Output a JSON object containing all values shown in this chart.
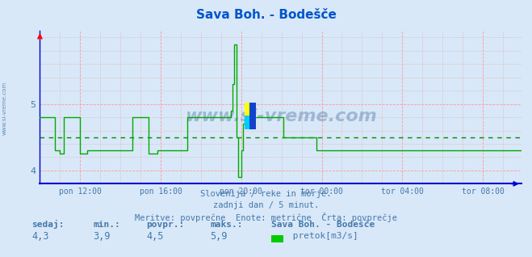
{
  "title": "Sava Boh. - Bodešče",
  "background_color": "#d8e8f8",
  "plot_bg_color": "#d8e8f8",
  "line_color": "#00aa00",
  "avg_line_color": "#008800",
  "axis_color": "#0000cc",
  "text_color": "#4477aa",
  "title_color": "#0055cc",
  "ylim": [
    3.8,
    6.1
  ],
  "yticks": [
    4.0,
    5.0
  ],
  "grid_color_major": "#ff9999",
  "grid_color_minor": "#ddbbbb",
  "avg_value": 4.5,
  "sedaj": 4.3,
  "min_val": 3.9,
  "povpr": 4.5,
  "maks": 5.9,
  "subtitle1": "Slovenija / reke in morje.",
  "subtitle2": "zadnji dan / 5 minut.",
  "subtitle3": "Meritve: povprečne  Enote: metrične  Črta: povprečje",
  "legend_title": "Sava Boh. - Bodešče",
  "legend_label": " pretok[m3/s]",
  "legend_color": "#00cc00",
  "watermark": "www.si-vreme.com",
  "xlabel_ticks": [
    "pon 12:00",
    "pon 16:00",
    "pon 20:00",
    "tor 00:00",
    "tor 04:00",
    "tor 08:00"
  ],
  "n_points": 288,
  "watermark_color": "#1a4a8a",
  "sidebar_text": "www.si-vreme.com",
  "sidebar_color": "#336699",
  "tick_x_indices": [
    24,
    72,
    120,
    168,
    216,
    264
  ]
}
